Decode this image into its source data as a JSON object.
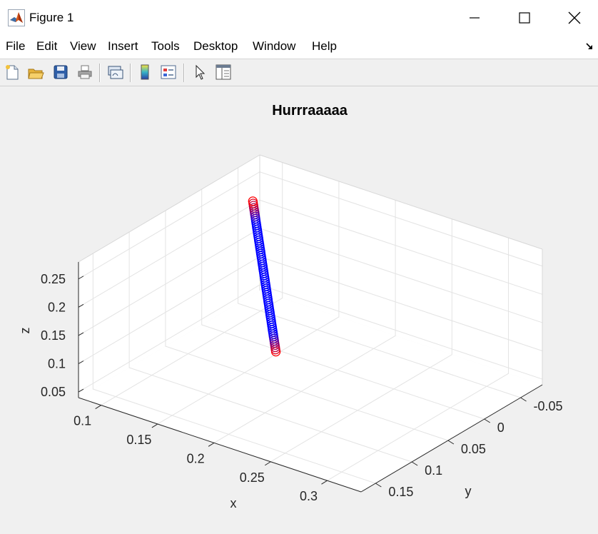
{
  "window": {
    "title": "Figure 1"
  },
  "menu": [
    "File",
    "Edit",
    "View",
    "Insert",
    "Tools",
    "Desktop",
    "Window",
    "Help"
  ],
  "toolbar": [
    "new-figure-icon",
    "open-file-icon",
    "save-icon",
    "print-icon",
    "link-plot-icon",
    "colorbar-icon",
    "legend-icon",
    "edit-plot-arrow-icon",
    "property-inspector-icon"
  ],
  "chart_data": {
    "type": "scatter",
    "title": "Hurrraaaaa",
    "xlabel": "x",
    "ylabel": "y",
    "zlabel": "z",
    "xlim": [
      0.08,
      0.33
    ],
    "ylim": [
      -0.08,
      0.17
    ],
    "zlim": [
      0.04,
      0.28
    ],
    "xticks": [
      "0.1",
      "0.15",
      "0.2",
      "0.25",
      "0.3"
    ],
    "yticks": [
      "-0.05",
      "0",
      "0.05",
      "0.1",
      "0.15"
    ],
    "zticks": [
      "0.05",
      "0.1",
      "0.15",
      "0.2",
      "0.25"
    ],
    "grid": true,
    "marker": "circle",
    "series": [
      {
        "color_start": "#ff0000",
        "color_end": "#0000ff",
        "start": [
          0.088,
          -0.058,
          0.22
        ],
        "end": [
          0.245,
          0.155,
          0.22
        ]
      }
    ]
  }
}
